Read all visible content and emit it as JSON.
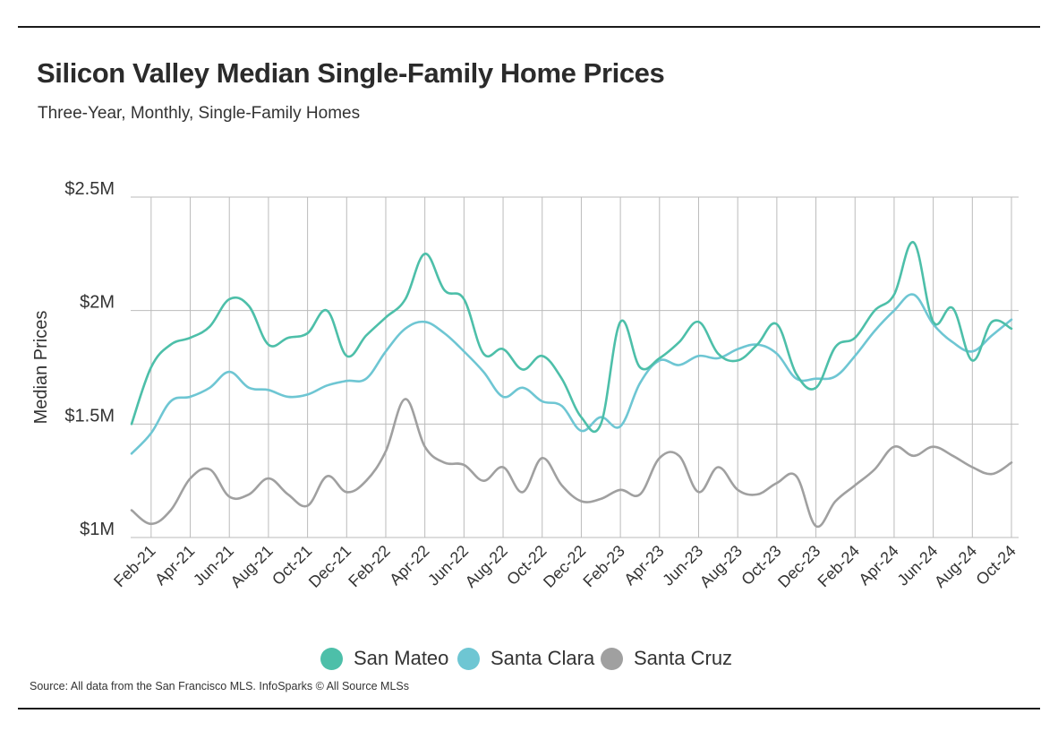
{
  "title": "Silicon Valley Median Single-Family Home Prices",
  "subtitle": "Three-Year, Monthly, Single-Family Homes",
  "source": "Source:  All data from the San Francisco MLS. InfoSparks © All Source MLSs",
  "colors": {
    "san_mateo": "#4dbfa9",
    "santa_clara": "#6ec6d3",
    "santa_cruz": "#a0a0a0",
    "grid": "#bbbbbb",
    "axis_text": "#333333"
  },
  "chart_data": {
    "type": "line",
    "title": "Silicon Valley Median Single-Family Home Prices",
    "subtitle": "Three-Year, Monthly, Single-Family Homes",
    "xlabel": "",
    "ylabel": "Median Prices",
    "ylim": [
      1000000,
      2500000
    ],
    "ytick_values": [
      1000000,
      1500000,
      2000000,
      2500000
    ],
    "ytick_labels": [
      "$1M",
      "$1.5M",
      "$2M",
      "$2.5M"
    ],
    "grid": true,
    "legend_position": "bottom-center",
    "x": [
      "Jan-21",
      "Feb-21",
      "Mar-21",
      "Apr-21",
      "May-21",
      "Jun-21",
      "Jul-21",
      "Aug-21",
      "Sep-21",
      "Oct-21",
      "Nov-21",
      "Dec-21",
      "Jan-22",
      "Feb-22",
      "Mar-22",
      "Apr-22",
      "May-22",
      "Jun-22",
      "Jul-22",
      "Aug-22",
      "Sep-22",
      "Oct-22",
      "Nov-22",
      "Dec-22",
      "Jan-23",
      "Feb-23",
      "Mar-23",
      "Apr-23",
      "May-23",
      "Jun-23",
      "Jul-23",
      "Aug-23",
      "Sep-23",
      "Oct-23",
      "Nov-23",
      "Dec-23",
      "Jan-24",
      "Feb-24",
      "Mar-24",
      "Apr-24",
      "May-24",
      "Jun-24",
      "Jul-24",
      "Aug-24",
      "Sep-24",
      "Oct-24"
    ],
    "x_tick_labels": [
      "Feb-21",
      "Apr-21",
      "Jun-21",
      "Aug-21",
      "Oct-21",
      "Dec-21",
      "Feb-22",
      "Apr-22",
      "Jun-22",
      "Aug-22",
      "Oct-22",
      "Dec-22",
      "Feb-23",
      "Apr-23",
      "Jun-23",
      "Aug-23",
      "Oct-23",
      "Dec-23",
      "Feb-24",
      "Apr-24",
      "Jun-24",
      "Aug-24",
      "Oct-24"
    ],
    "series": [
      {
        "name": "San Mateo",
        "color": "#4dbfa9",
        "values": [
          1500000,
          1750000,
          1850000,
          1880000,
          1930000,
          2050000,
          2020000,
          1850000,
          1880000,
          1900000,
          2000000,
          1800000,
          1890000,
          1970000,
          2050000,
          2250000,
          2090000,
          2050000,
          1810000,
          1830000,
          1740000,
          1800000,
          1700000,
          1530000,
          1500000,
          1950000,
          1750000,
          1790000,
          1860000,
          1950000,
          1810000,
          1780000,
          1850000,
          1940000,
          1720000,
          1660000,
          1840000,
          1880000,
          2000000,
          2070000,
          2300000,
          1950000,
          2010000,
          1780000,
          1950000,
          1920000
        ]
      },
      {
        "name": "Santa Clara",
        "color": "#6ec6d3",
        "values": [
          1370000,
          1460000,
          1600000,
          1620000,
          1660000,
          1730000,
          1660000,
          1650000,
          1620000,
          1630000,
          1670000,
          1690000,
          1700000,
          1820000,
          1920000,
          1950000,
          1900000,
          1820000,
          1730000,
          1620000,
          1660000,
          1600000,
          1580000,
          1470000,
          1530000,
          1490000,
          1680000,
          1780000,
          1760000,
          1800000,
          1790000,
          1830000,
          1850000,
          1810000,
          1700000,
          1700000,
          1710000,
          1800000,
          1910000,
          2000000,
          2070000,
          1940000,
          1860000,
          1820000,
          1890000,
          1960000
        ]
      },
      {
        "name": "Santa Cruz",
        "color": "#a0a0a0",
        "values": [
          1120000,
          1060000,
          1120000,
          1260000,
          1300000,
          1180000,
          1190000,
          1260000,
          1190000,
          1140000,
          1270000,
          1200000,
          1250000,
          1380000,
          1610000,
          1400000,
          1330000,
          1320000,
          1250000,
          1310000,
          1200000,
          1350000,
          1230000,
          1160000,
          1170000,
          1210000,
          1190000,
          1350000,
          1360000,
          1200000,
          1310000,
          1210000,
          1190000,
          1240000,
          1270000,
          1050000,
          1160000,
          1230000,
          1300000,
          1400000,
          1360000,
          1400000,
          1360000,
          1310000,
          1280000,
          1330000
        ]
      }
    ]
  }
}
